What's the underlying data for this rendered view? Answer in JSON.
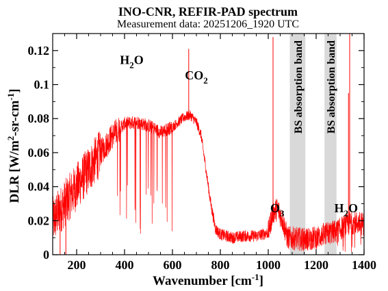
{
  "chart_data": {
    "type": "line",
    "title": "INO-CNR, REFIR-PAD spectrum",
    "subtitle": "Measurement data: 20251206_1920 UTC",
    "xlabel_main": "Wavenumber [cm",
    "xlabel_sup": "-1",
    "xlabel_end": "]",
    "ylabel_main": "DLR [W/m",
    "ylabel_sup1": "2",
    "ylabel_mid": "-sr-cm",
    "ylabel_sup2": "-1",
    "ylabel_end": "]",
    "xlim": [
      100,
      1400
    ],
    "ylim": [
      0,
      0.13
    ],
    "x_ticks": [
      200,
      400,
      600,
      800,
      1000,
      1200,
      1400
    ],
    "y_ticks": [
      0,
      0.02,
      0.04,
      0.06,
      0.08,
      0.1,
      0.12
    ],
    "x_tick_labels": [
      "200",
      "400",
      "600",
      "800",
      "1000",
      "1200",
      "1400"
    ],
    "y_tick_labels": [
      "0",
      "0.02",
      "0.04",
      "0.06",
      "0.08",
      "0.1",
      "0.12"
    ],
    "line_color": "#ff0000",
    "band_color": "#d9d9d9",
    "bands": [
      {
        "x0": 1090,
        "x1": 1155,
        "label": "BS absorption band"
      },
      {
        "x0": 1235,
        "x1": 1285,
        "label": "BS absorption band"
      }
    ],
    "annotations": [
      {
        "base": "H",
        "sub": "2",
        "rest": "O",
        "x": 430,
        "y": 0.112
      },
      {
        "base": "CO",
        "sub": "2",
        "rest": "",
        "x": 700,
        "y": 0.103
      },
      {
        "base": "O",
        "sub": "3",
        "rest": "",
        "x": 1038,
        "y": 0.025
      },
      {
        "base": "H",
        "sub": "2",
        "rest": "O",
        "x": 1325,
        "y": 0.025
      }
    ],
    "envelope": [
      {
        "x": 100,
        "y": 0.02
      },
      {
        "x": 150,
        "y": 0.03
      },
      {
        "x": 200,
        "y": 0.04
      },
      {
        "x": 250,
        "y": 0.05
      },
      {
        "x": 300,
        "y": 0.06
      },
      {
        "x": 350,
        "y": 0.07
      },
      {
        "x": 400,
        "y": 0.077
      },
      {
        "x": 450,
        "y": 0.078
      },
      {
        "x": 500,
        "y": 0.076
      },
      {
        "x": 550,
        "y": 0.072
      },
      {
        "x": 600,
        "y": 0.075
      },
      {
        "x": 625,
        "y": 0.078
      },
      {
        "x": 650,
        "y": 0.081
      },
      {
        "x": 675,
        "y": 0.082
      },
      {
        "x": 700,
        "y": 0.078
      },
      {
        "x": 720,
        "y": 0.07
      },
      {
        "x": 740,
        "y": 0.05
      },
      {
        "x": 760,
        "y": 0.03
      },
      {
        "x": 780,
        "y": 0.015
      },
      {
        "x": 800,
        "y": 0.012
      },
      {
        "x": 850,
        "y": 0.01
      },
      {
        "x": 900,
        "y": 0.011
      },
      {
        "x": 950,
        "y": 0.011
      },
      {
        "x": 1000,
        "y": 0.013
      },
      {
        "x": 1020,
        "y": 0.025
      },
      {
        "x": 1040,
        "y": 0.027
      },
      {
        "x": 1060,
        "y": 0.02
      },
      {
        "x": 1080,
        "y": 0.01
      },
      {
        "x": 1150,
        "y": 0.009
      },
      {
        "x": 1200,
        "y": 0.01
      },
      {
        "x": 1235,
        "y": 0.012
      },
      {
        "x": 1290,
        "y": 0.014
      },
      {
        "x": 1320,
        "y": 0.017
      },
      {
        "x": 1350,
        "y": 0.019
      },
      {
        "x": 1400,
        "y": 0.018
      }
    ],
    "spikes": [
      {
        "x": 131,
        "y": 0.0
      },
      {
        "x": 155,
        "y": 0.0
      },
      {
        "x": 668,
        "y": 0.121
      },
      {
        "x": 1020,
        "y": 0.128
      },
      {
        "x": 1340,
        "y": 0.13
      },
      {
        "x": 1335,
        "y": 0.095
      }
    ]
  }
}
